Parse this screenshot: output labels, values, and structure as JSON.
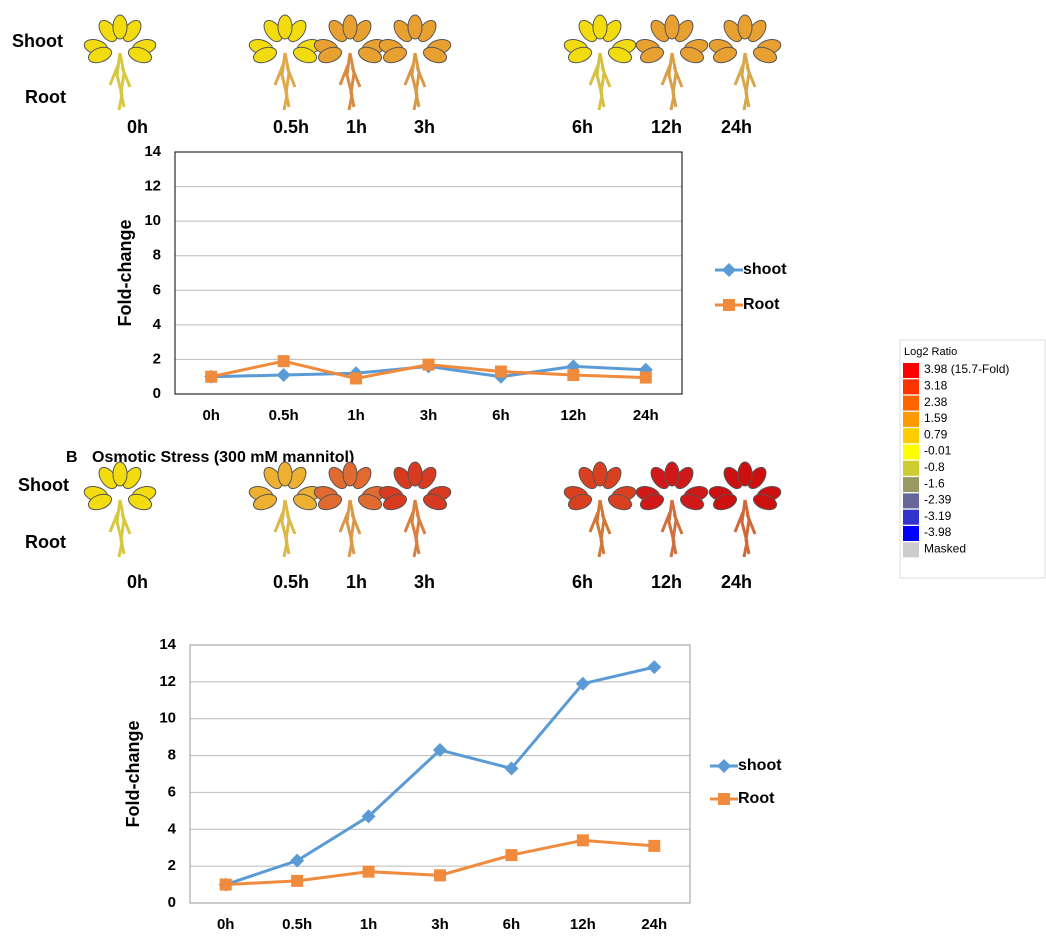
{
  "panels": [
    {
      "row_labels": [
        "Shoot",
        "Root"
      ],
      "times": [
        "0h",
        "0.5h",
        "1h",
        "3h",
        "6h",
        "12h",
        "24h"
      ],
      "shoot_colors": [
        "#f2dc10",
        "#f2dc10",
        "#e8a030",
        "#e8a030",
        "#f2dc10",
        "#e8a030",
        "#e8a030"
      ],
      "root_colors": [
        "#d8c840",
        "#e0a848",
        "#d88a40",
        "#d89a48",
        "#d8c040",
        "#d8a048",
        "#d8a848"
      ]
    },
    {
      "label": "B",
      "title": "Osmotic Stress (300 mM mannitol)",
      "row_labels": [
        "Shoot",
        "Root"
      ],
      "times": [
        "0h",
        "0.5h",
        "1h",
        "3h",
        "6h",
        "12h",
        "24h"
      ],
      "shoot_colors": [
        "#f2dc10",
        "#eeb030",
        "#e06a30",
        "#d83a20",
        "#d84020",
        "#d01818",
        "#cc1010"
      ],
      "root_colors": [
        "#d8c840",
        "#dcb848",
        "#d89a48",
        "#d88040",
        "#d07838",
        "#d07040",
        "#d06838"
      ]
    }
  ],
  "color_scale": {
    "title": "Log2 Ratio",
    "entries": [
      {
        "label": "3.98  (15.7-Fold)",
        "color": "#ff0000"
      },
      {
        "label": "3.18",
        "color": "#ff3300"
      },
      {
        "label": "2.38",
        "color": "#ff6600"
      },
      {
        "label": "1.59",
        "color": "#ff9900"
      },
      {
        "label": "0.79",
        "color": "#ffcc00"
      },
      {
        "label": "-0.01",
        "color": "#ffff00"
      },
      {
        "label": "-0.8",
        "color": "#cccc33"
      },
      {
        "label": "-1.6",
        "color": "#999966"
      },
      {
        "label": "-2.39",
        "color": "#666699"
      },
      {
        "label": "-3.19",
        "color": "#3333cc"
      },
      {
        "label": "-3.98",
        "color": "#0000ff"
      },
      {
        "label": "Masked",
        "color": "#cccccc"
      }
    ]
  },
  "chart_data": [
    {
      "type": "line",
      "y_label": "Fold-change",
      "categories": [
        "0h",
        "0.5h",
        "1h",
        "3h",
        "6h",
        "12h",
        "24h"
      ],
      "ylim": [
        0,
        14
      ],
      "yticks": [
        0,
        2,
        4,
        6,
        8,
        10,
        12,
        14
      ],
      "grid": true,
      "series": [
        {
          "name": "shoot",
          "color": "#5b9bd5",
          "marker": "diamond",
          "values": [
            1,
            1.1,
            1.2,
            1.6,
            1.0,
            1.6,
            1.4
          ]
        },
        {
          "name": "Root",
          "color": "#f08a3c",
          "marker": "square",
          "values": [
            1,
            1.9,
            0.9,
            1.7,
            1.3,
            1.1,
            0.95
          ]
        }
      ]
    },
    {
      "type": "line",
      "y_label": "Fold-change",
      "categories": [
        "0h",
        "0.5h",
        "1h",
        "3h",
        "6h",
        "12h",
        "24h"
      ],
      "ylim": [
        0,
        14
      ],
      "yticks": [
        0,
        2,
        4,
        6,
        8,
        10,
        12,
        14
      ],
      "grid": true,
      "series": [
        {
          "name": "shoot",
          "color": "#5b9bd5",
          "marker": "diamond",
          "values": [
            1,
            2.3,
            4.7,
            8.3,
            7.3,
            11.9,
            12.8
          ]
        },
        {
          "name": "Root",
          "color": "#f08a3c",
          "marker": "square",
          "values": [
            1,
            1.2,
            1.7,
            1.5,
            2.6,
            3.4,
            3.1
          ]
        }
      ]
    }
  ]
}
